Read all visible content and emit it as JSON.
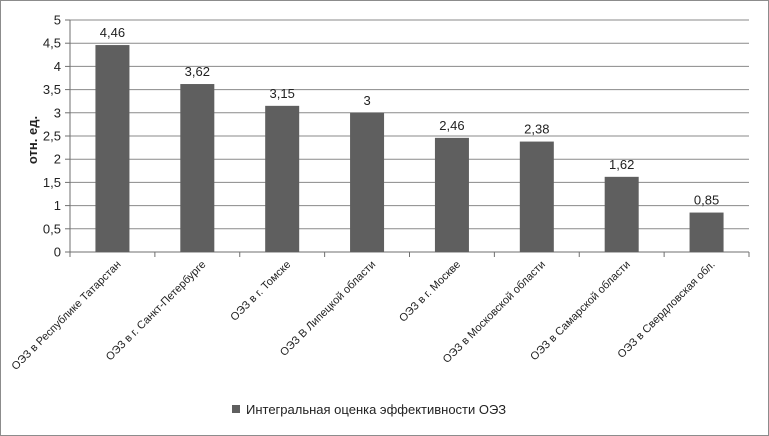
{
  "chart_data": {
    "type": "bar",
    "categories": [
      "ОЭЗ в Республике Татарстан",
      "ОЭЗ в г. Санкт-Петербурге",
      "ОЭЗ в г. Томске",
      "ОЭЗ В Липецкой области",
      "ОЭЗ в г. Москве",
      "ОЭЗ в Московской области",
      "ОЭЗ в Самарской области",
      "ОЭЗ в Свердловская обл."
    ],
    "values": [
      4.46,
      3.62,
      3.15,
      3,
      2.46,
      2.38,
      1.62,
      0.85
    ],
    "value_labels": [
      "4,46",
      "3,62",
      "3,15",
      "3",
      "2,46",
      "2,38",
      "1,62",
      "0,85"
    ],
    "series": [
      {
        "name": "Интегральная оценка эффективности ОЭЗ",
        "values": [
          4.46,
          3.62,
          3.15,
          3,
          2.46,
          2.38,
          1.62,
          0.85
        ]
      }
    ],
    "ylabel": "отн. ед.",
    "xlabel": "",
    "ylim": [
      0,
      5
    ],
    "yticks": [
      "0",
      "0,5",
      "1",
      "1,5",
      "2",
      "2,5",
      "3",
      "3,5",
      "4",
      "4,5",
      "5"
    ],
    "grid": true,
    "legend": "bottom",
    "colors": {
      "bar": "#5f5f5f",
      "grid": "#8a8a8a",
      "axis": "#6f6f6f"
    }
  }
}
